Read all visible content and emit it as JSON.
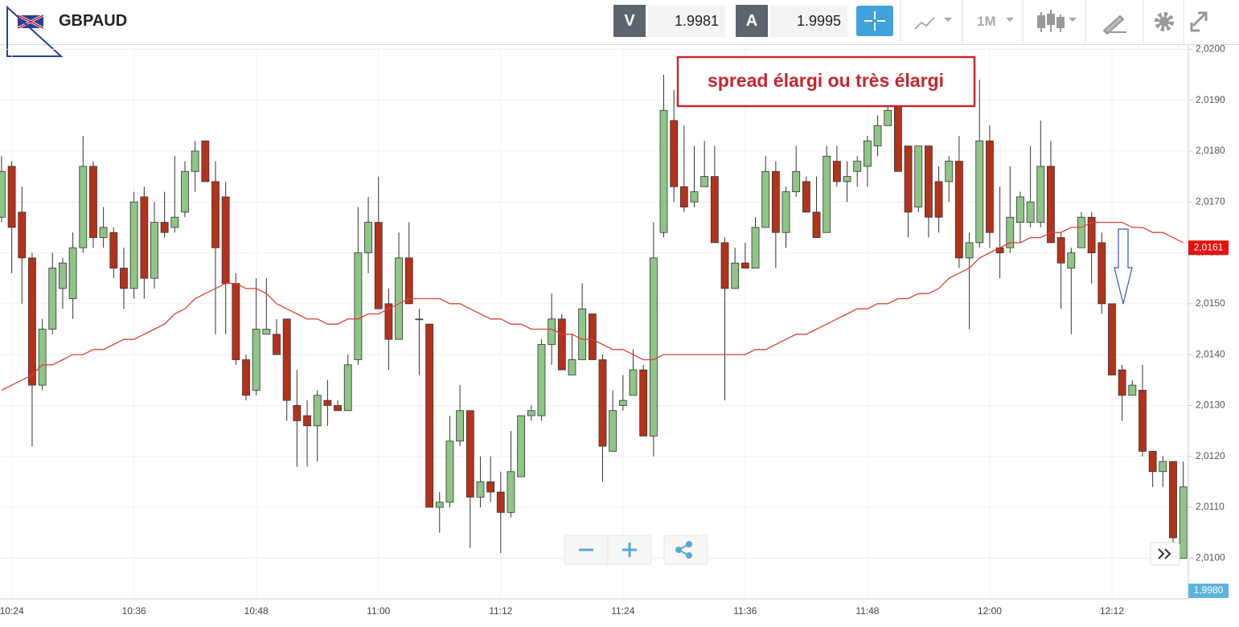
{
  "header": {
    "symbol": "GBPAUD",
    "sell_label": "V",
    "sell_price": "1.9981",
    "buy_label": "A",
    "buy_price": "1.9995",
    "timeframe": "1M"
  },
  "chart_data": {
    "type": "candlestick",
    "annotation": "spread élargi ou très élargi",
    "categories": [
      null,
      "10:24",
      null,
      null,
      null,
      null,
      null,
      null,
      null,
      null,
      null,
      null,
      null,
      "10:36",
      null,
      null,
      null,
      null,
      null,
      null,
      null,
      null,
      null,
      null,
      null,
      "10:48",
      null,
      null,
      null,
      null,
      null,
      null,
      null,
      null,
      null,
      null,
      null,
      "11:00",
      null,
      null,
      null,
      null,
      null,
      null,
      null,
      null,
      null,
      null,
      null,
      "11:12",
      null,
      null,
      null,
      null,
      null,
      null,
      null,
      null,
      null,
      null,
      null,
      "11:24",
      null,
      null,
      null,
      null,
      null,
      null,
      null,
      null,
      null,
      null,
      null,
      "11:36",
      null,
      null,
      null,
      null,
      null,
      null,
      null,
      null,
      null,
      null,
      null,
      "11:48",
      null,
      null,
      null,
      null,
      null,
      null,
      null,
      null,
      null,
      null,
      null,
      "12:00",
      null,
      null,
      null,
      null,
      null,
      null,
      null,
      null,
      null,
      null,
      null,
      "12:12",
      null,
      null,
      null,
      null,
      null,
      null,
      null
    ],
    "open": [
      2.0167,
      2.0177,
      2.0168,
      2.0159,
      2.0134,
      2.0145,
      2.0153,
      2.0151,
      2.0161,
      2.0177,
      2.0163,
      2.0164,
      2.0157,
      2.0153,
      2.0171,
      2.0155,
      2.0166,
      2.0165,
      2.0168,
      2.0176,
      2.0182,
      2.0174,
      2.0171,
      2.0154,
      2.0139,
      2.0133,
      2.0144,
      2.0144,
      2.0147,
      2.013,
      2.0128,
      2.0126,
      2.0131,
      2.013,
      2.0129,
      2.0139,
      2.016,
      2.0166,
      2.015,
      2.0143,
      2.0159,
      2.0147,
      2.0146,
      2.011,
      2.0111,
      2.0123,
      2.0129,
      2.0112,
      2.0115,
      2.0113,
      2.0109,
      2.0116,
      2.0128,
      2.0128,
      2.0142,
      2.0147,
      2.0136,
      2.0139,
      2.0148,
      2.0139,
      2.0121,
      2.013,
      2.0132,
      2.0137,
      2.0124,
      2.0164,
      2.0186,
      2.0173,
      2.017,
      2.0173,
      2.0175,
      2.0162,
      2.0153,
      2.0158,
      2.0157,
      2.0165,
      2.0176,
      2.0164,
      2.0172,
      2.0174,
      2.0168,
      2.0164,
      2.0178,
      2.0174,
      2.0176,
      2.0177,
      2.0181,
      2.0185,
      2.0189,
      2.0181,
      2.0169,
      2.0181,
      2.0174,
      2.0174,
      2.0178,
      2.0159,
      2.0162,
      2.0182,
      2.0161,
      2.0161,
      2.0166,
      2.0166,
      2.0166,
      2.0177,
      2.0163,
      2.0157,
      2.0161,
      2.0167,
      2.0162,
      2.015,
      2.0137,
      2.0132,
      2.0133,
      2.0121,
      2.0117,
      2.0119,
      2.01
    ],
    "high": [
      2.0179,
      2.0178,
      2.0173,
      2.016,
      2.0147,
      2.016,
      2.0159,
      2.0164,
      2.0183,
      2.0178,
      2.0169,
      2.0165,
      2.0161,
      2.0172,
      2.0173,
      2.017,
      2.0172,
      2.0179,
      2.0178,
      2.0182,
      2.0182,
      2.0178,
      2.0174,
      2.0156,
      2.014,
      2.0155,
      2.0155,
      2.0147,
      2.0147,
      2.0137,
      2.0131,
      2.0133,
      2.0135,
      2.0131,
      2.014,
      2.0169,
      2.0171,
      2.0175,
      2.0153,
      2.0164,
      2.0166,
      2.0149,
      2.0146,
      2.0113,
      2.0128,
      2.0134,
      2.0129,
      2.012,
      2.012,
      2.0117,
      2.0125,
      2.0128,
      2.013,
      2.0143,
      2.0152,
      2.0148,
      2.0144,
      2.0154,
      2.0148,
      2.014,
      2.0133,
      2.0136,
      2.0141,
      2.0138,
      2.0166,
      2.0195,
      2.0192,
      2.0185,
      2.0181,
      2.0182,
      2.0181,
      2.0163,
      2.0161,
      2.0162,
      2.0167,
      2.0179,
      2.0178,
      2.0173,
      2.0181,
      2.0175,
      2.0175,
      2.0181,
      2.0181,
      2.0178,
      2.0179,
      2.0183,
      2.0187,
      2.019,
      2.019,
      2.0181,
      2.0181,
      2.0181,
      2.0177,
      2.0179,
      2.0183,
      2.0164,
      2.0194,
      2.0185,
      2.0173,
      2.0177,
      2.0172,
      2.0181,
      2.0186,
      2.0182,
      2.0164,
      2.0161,
      2.0168,
      2.0168,
      2.0164,
      2.015,
      2.0138,
      2.0135,
      2.0138,
      2.0121,
      2.012,
      2.0119,
      2.0119
    ],
    "low": [
      2.0166,
      2.0156,
      2.015,
      2.0122,
      2.0133,
      2.0144,
      2.0149,
      2.0147,
      2.016,
      2.0161,
      2.0161,
      2.0155,
      2.0149,
      2.0151,
      2.0151,
      2.0153,
      2.0163,
      2.0164,
      2.0167,
      2.0172,
      2.0174,
      2.0144,
      2.0144,
      2.0138,
      2.0131,
      2.0132,
      2.0144,
      2.014,
      2.0127,
      2.0118,
      2.0118,
      2.0119,
      2.0126,
      2.0129,
      2.0129,
      2.0138,
      2.0156,
      2.0149,
      2.0137,
      2.0143,
      2.015,
      2.0136,
      2.011,
      2.0105,
      2.011,
      2.0122,
      2.0102,
      2.011,
      2.0111,
      2.0101,
      2.0108,
      2.0116,
      2.0127,
      2.0127,
      2.0138,
      2.0137,
      2.0136,
      2.0139,
      2.0139,
      2.0115,
      2.0121,
      2.0129,
      2.0132,
      2.0124,
      2.012,
      2.0163,
      2.017,
      2.0168,
      2.0169,
      2.0173,
      2.0162,
      2.0131,
      2.0153,
      2.0157,
      2.0157,
      2.0165,
      2.0157,
      2.0161,
      2.0171,
      2.0168,
      2.0163,
      2.0164,
      2.0173,
      2.017,
      2.0173,
      2.0173,
      2.0179,
      2.0185,
      2.0176,
      2.0163,
      2.0168,
      2.0163,
      2.0164,
      2.017,
      2.0157,
      2.0145,
      2.0161,
      2.0161,
      2.0155,
      2.016,
      2.0162,
      2.0165,
      2.0165,
      2.0162,
      2.0149,
      2.0144,
      2.0161,
      2.0154,
      2.0148,
      2.0136,
      2.0127,
      2.0132,
      2.012,
      2.0114,
      2.0114,
      2.0099,
      2.01
    ],
    "close": [
      2.0176,
      2.0165,
      2.0159,
      2.0134,
      2.0145,
      2.0157,
      2.0158,
      2.0161,
      2.0177,
      2.0163,
      2.0165,
      2.0157,
      2.0153,
      2.017,
      2.0155,
      2.0166,
      2.0164,
      2.0167,
      2.0176,
      2.018,
      2.0174,
      2.0161,
      2.0154,
      2.0139,
      2.0132,
      2.0145,
      2.0145,
      2.014,
      2.0131,
      2.0127,
      2.0126,
      2.0132,
      2.013,
      2.0129,
      2.0138,
      2.016,
      2.0166,
      2.0149,
      2.0143,
      2.0159,
      2.015,
      2.0147,
      2.011,
      2.0111,
      2.0123,
      2.0129,
      2.0112,
      2.0115,
      2.0113,
      2.0109,
      2.0117,
      2.0128,
      2.0129,
      2.0142,
      2.0147,
      2.0137,
      2.0139,
      2.0149,
      2.0139,
      2.0122,
      2.0129,
      2.0131,
      2.0137,
      2.0124,
      2.0159,
      2.0188,
      2.0173,
      2.0169,
      2.0172,
      2.0175,
      2.0162,
      2.0153,
      2.0158,
      2.0157,
      2.0165,
      2.0176,
      2.0164,
      2.0172,
      2.0176,
      2.0168,
      2.0163,
      2.0179,
      2.0174,
      2.0175,
      2.0178,
      2.0182,
      2.0185,
      2.0188,
      2.0176,
      2.0168,
      2.0181,
      2.0167,
      2.0167,
      2.0178,
      2.0159,
      2.0162,
      2.0182,
      2.0164,
      2.016,
      2.0167,
      2.0171,
      2.017,
      2.0177,
      2.0162,
      2.0158,
      2.016,
      2.0167,
      2.016,
      2.015,
      2.0136,
      2.0132,
      2.0134,
      2.0121,
      2.0117,
      2.0119,
      2.0104,
      2.0114
    ],
    "up_color": "#8fc587",
    "down_color": "#b5321a",
    "series": [
      {
        "type": "line",
        "color": "#e0403a",
        "values": [
          2.0133,
          2.0134,
          2.0135,
          2.0136,
          2.0138,
          2.0138,
          2.0139,
          2.014,
          2.014,
          2.0141,
          2.0141,
          2.0142,
          2.0143,
          2.0143,
          2.0144,
          2.0145,
          2.0146,
          2.0148,
          2.0149,
          2.0151,
          2.0152,
          2.0153,
          2.0154,
          2.0154,
          2.0153,
          2.0153,
          2.0152,
          2.015,
          2.0149,
          2.0148,
          2.0147,
          2.0147,
          2.0146,
          2.0146,
          2.0147,
          2.0147,
          2.0148,
          2.0148,
          2.0149,
          2.015,
          2.0151,
          2.0151,
          2.0151,
          2.0151,
          2.015,
          2.015,
          2.0149,
          2.0148,
          2.0147,
          2.0147,
          2.0146,
          2.0146,
          2.0145,
          2.0145,
          2.0145,
          2.0144,
          2.0144,
          2.0143,
          2.0143,
          2.0142,
          2.0141,
          2.0141,
          2.014,
          2.0139,
          2.0139,
          2.014,
          2.014,
          2.014,
          2.014,
          2.014,
          2.014,
          2.014,
          2.014,
          2.014,
          2.0141,
          2.0141,
          2.0142,
          2.0143,
          2.0144,
          2.0144,
          2.0145,
          2.0146,
          2.0147,
          2.0148,
          2.0149,
          2.0149,
          2.015,
          2.015,
          2.0151,
          2.0151,
          2.0152,
          2.0152,
          2.0153,
          2.0155,
          2.0156,
          2.0157,
          2.0159,
          2.016,
          2.0161,
          2.0162,
          2.0162,
          2.0163,
          2.0163,
          2.0164,
          2.0164,
          2.0165,
          2.0165,
          2.0166,
          2.0166,
          2.0166,
          2.0166,
          2.0165,
          2.0165,
          2.0164,
          2.0164,
          2.0163,
          2.0162
        ]
      }
    ],
    "ylim": [
      2.0092,
      2.0201
    ],
    "yticks": [
      {
        "value": 2.01,
        "label": "2,0100"
      },
      {
        "value": 2.011,
        "label": "2,0110"
      },
      {
        "value": 2.012,
        "label": "2,0120"
      },
      {
        "value": 2.013,
        "label": "2,0130"
      },
      {
        "value": 2.014,
        "label": "2,0140"
      },
      {
        "value": 2.015,
        "label": "2,0150"
      },
      {
        "value": 2.016,
        "label": "2,0160"
      },
      {
        "value": 2.017,
        "label": "2,0170"
      },
      {
        "value": 2.018,
        "label": "2,0180"
      },
      {
        "value": 2.019,
        "label": "2,0190"
      },
      {
        "value": 2.02,
        "label": "2,0200"
      }
    ],
    "grid": true,
    "last_price": {
      "value": 2.0161,
      "label": "2,0161",
      "color": "#e8120c"
    },
    "bottom_marker": {
      "value": 1.998,
      "label": "1,9980",
      "color": "#5ab4dc"
    }
  }
}
